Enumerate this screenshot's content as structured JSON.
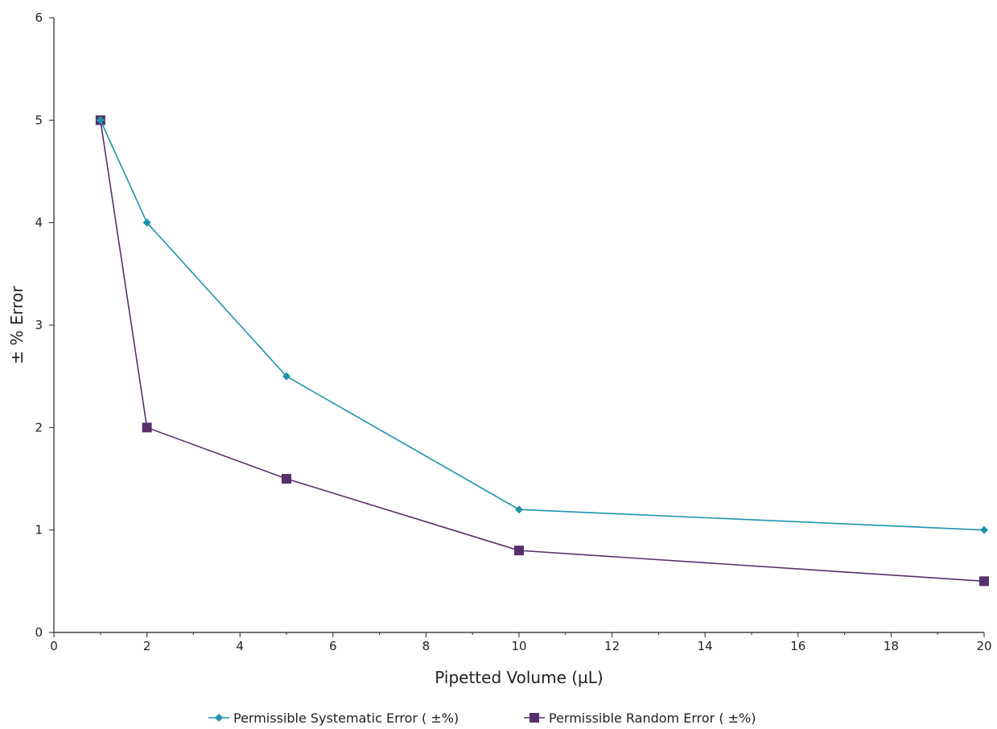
{
  "chart_data": {
    "type": "line",
    "xlabel": "Pipetted Volume (µL)",
    "ylabel": "± % Error",
    "xlim": [
      0,
      20
    ],
    "ylim": [
      0,
      6
    ],
    "x_ticks": [
      0,
      2,
      4,
      6,
      8,
      10,
      12,
      14,
      16,
      18,
      20
    ],
    "x_minor_step": 1,
    "y_ticks": [
      0,
      1,
      2,
      3,
      4,
      5,
      6
    ],
    "grid": false,
    "legend_position": "bottom",
    "series": [
      {
        "name": "Permissible Systematic Error ( ±%)",
        "color": "#1E93AE",
        "marker": "diamond",
        "x": [
          1,
          2,
          5,
          10,
          20
        ],
        "y": [
          5,
          4,
          2.5,
          1.2,
          1
        ]
      },
      {
        "name": "Permissible Random Error ( ±%)",
        "color": "#57306B",
        "marker": "square",
        "x": [
          1,
          2,
          5,
          10,
          20
        ],
        "y": [
          5,
          2,
          1.5,
          0.8,
          0.5
        ]
      }
    ]
  }
}
